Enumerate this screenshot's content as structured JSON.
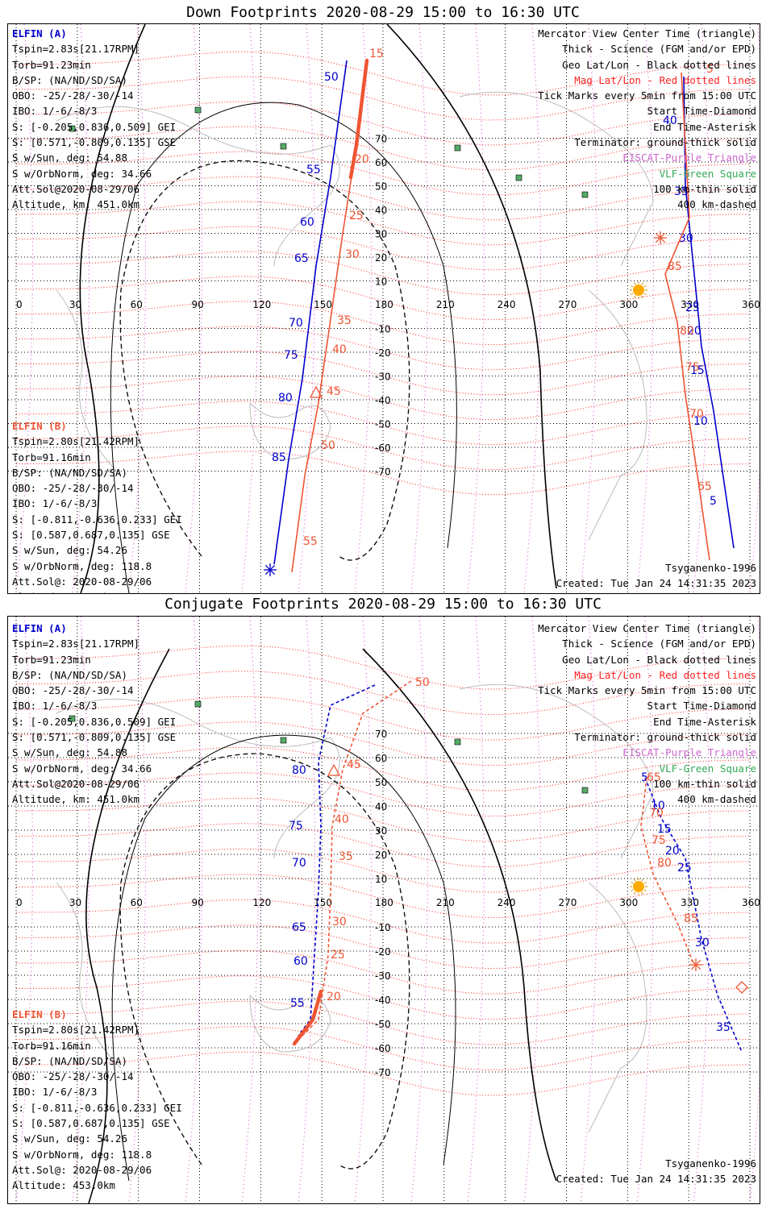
{
  "chart_data": [
    {
      "type": "map",
      "title": "Down Footprints 2020-08-29 15:00 to 16:30 UTC",
      "projection": "mercator",
      "lon_ticks": [
        0,
        30,
        60,
        90,
        120,
        150,
        180,
        210,
        240,
        270,
        300,
        330,
        360
      ],
      "lat_ticks": [
        70,
        60,
        50,
        40,
        30,
        20,
        10,
        -10,
        -20,
        -30,
        -40,
        -50,
        -60,
        -70
      ],
      "elfin_a": {
        "header": "ELFIN (A)",
        "lines": [
          "Tspin=2.83s[21.17RPM]",
          "Torb=91.23min",
          "B/SP: (NA/ND/SD/SA)",
          "OBO: -25/-28/-30/-14",
          "IBO: 1/-6/-8/3",
          "S: [-0.205,0.836,0.509] GEI",
          "S: [0.571,-0.809,0.135] GSE",
          "S w/Sun, deg: 54.88",
          "S w/OrbNorm, deg: 34.66",
          "Att.Sol@2020-08-29/06",
          "Altitude, km: 451.0km"
        ]
      },
      "elfin_b": {
        "header": "ELFIN (B)",
        "lines": [
          "Tspin=2.80s[21.42RPM]",
          "Torb=91.16min",
          "B/SP: (NA/ND/SD/SA)",
          "OBO: -25/-28/-30/-14",
          "IBO: 1/-6/-8/3",
          "S: [-0.811,-0.636,0.233] GEI",
          "S: [0.587,0.687,0.135] GSE",
          "S w/Sun, deg: 54.26",
          "S w/OrbNorm, deg: 118.8",
          "Att.Sol@: 2020-08-29/06",
          "Altitude: 453.0km"
        ]
      },
      "legend": {
        "lines": [
          "Mercator View Center Time (triangle)",
          "Thick - Science (FGM and/or EPD)",
          "Geo Lat/Lon - Black dotted lines",
          "Mag Lat/Lon - Red dotted lines",
          "Tick Marks every 5min from 15:00 UTC",
          "Start Time-Diamond",
          "End Time-Asterisk",
          "Terminator: ground-thick solid",
          "EISCAT-Purple Triangle",
          "VLF-Green Square",
          "100 km-thin solid",
          "400 km-dashed"
        ]
      },
      "model": "Tsyganenko-1996",
      "created": "Created: Tue Jan 24 14:31:35 2023",
      "series": [
        {
          "name": "ELFIN (A)",
          "color": "#0000cc",
          "points": [
            [
              142,
              77
            ],
            [
              141,
              69
            ],
            [
              139,
              62
            ],
            [
              135,
              53
            ],
            [
              132,
              44
            ],
            [
              129,
              36
            ],
            [
              124,
              27
            ],
            [
              119,
              18
            ],
            [
              113,
              10
            ],
            [
              105,
              3
            ],
            [
              101,
              -6
            ],
            [
              100,
              -15
            ]
          ],
          "labels": [
            [
              "50",
              140,
              73
            ],
            [
              "55",
              134,
              60
            ],
            [
              "60",
              131,
              54
            ],
            [
              "65",
              128,
              45
            ],
            [
              "70",
              125,
              33
            ],
            [
              "75",
              121,
              25
            ],
            [
              "80",
              118,
              18
            ],
            [
              "85",
              113,
              10
            ]
          ]
        },
        {
          "name": "ELFIN (B)",
          "color": "#ee5533",
          "points": [
            [
              150,
              77
            ],
            [
              150,
              70
            ],
            [
              149,
              62
            ],
            [
              147,
              53
            ],
            [
              144,
              44
            ],
            [
              141,
              35
            ],
            [
              139,
              26
            ],
            [
              136,
              17
            ],
            [
              133,
              10
            ],
            [
              130,
              3
            ]
          ],
          "labels": [
            [
              "15",
              151,
              78
            ],
            [
              "20",
              152,
              61
            ],
            [
              "25",
              152,
              56
            ],
            [
              "30",
              151,
              50
            ],
            [
              "35",
              149,
              34
            ],
            [
              "40",
              148,
              27
            ],
            [
              "45",
              143,
              21
            ],
            [
              "50",
              141,
              13
            ],
            [
              "55",
              135,
              3
            ]
          ]
        }
      ]
    },
    {
      "type": "map",
      "title": "Conjugate Footprints 2020-08-29 15:00 to 16:30 UTC",
      "projection": "mercator",
      "lon_ticks": [
        0,
        30,
        60,
        90,
        120,
        150,
        180,
        210,
        240,
        270,
        300,
        330,
        360
      ],
      "lat_ticks": [
        70,
        60,
        50,
        40,
        30,
        20,
        10,
        -10,
        -20,
        -30,
        -40,
        -50,
        -60,
        -70
      ],
      "model": "Tsyganenko-1996",
      "created": "Created: Tue Jan 24 14:31:35 2023"
    }
  ],
  "dual_labels": {
    "top_a_tracks": [
      "40",
      "35",
      "30",
      "25",
      "20",
      "15",
      "10",
      "5"
    ],
    "top_b_tracks": [
      "5",
      "85",
      "80",
      "75",
      "70",
      "65"
    ],
    "bottom_a_tracks": [
      "80",
      "75",
      "70",
      "65",
      "60",
      "55",
      "5",
      "10",
      "15",
      "20",
      "25",
      "30",
      "35"
    ],
    "bottom_b_tracks": [
      "50",
      "45",
      "40",
      "35",
      "30",
      "25",
      "20",
      "65",
      "70",
      "75",
      "80",
      "85",
      "5"
    ]
  },
  "colors": {
    "mag_lines": "#ff2222",
    "geo_lines": "#000000",
    "elfin_a": "#0000cc",
    "elfin_b": "#ee5533",
    "eiscat": "#cc66cc",
    "vlf": "#33aa55",
    "sun": "#ffaa00"
  }
}
